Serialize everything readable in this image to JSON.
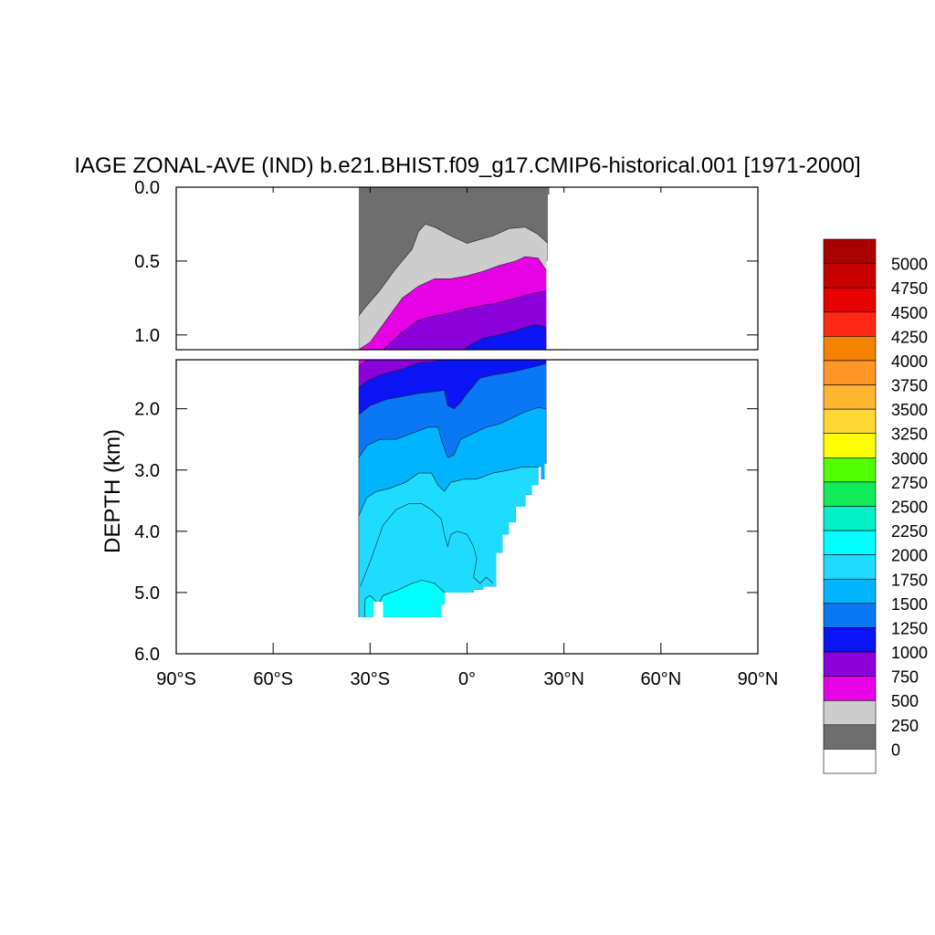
{
  "chart_data": {
    "type": "heatmap",
    "title": "IAGE ZONAL-AVE (IND) b.e21.BHIST.f09_g17.CMIP6-historical.001 [1971-2000]",
    "ylabel": "DEPTH (km)",
    "xlabel": "",
    "xlim": [
      -90,
      90
    ],
    "ylim_upper": [
      0,
      1.1
    ],
    "ylim_lower": [
      1.2,
      6.0
    ],
    "x_ticks": [
      {
        "value": -90,
        "label": "90°S"
      },
      {
        "value": -60,
        "label": "60°S"
      },
      {
        "value": -30,
        "label": "30°S"
      },
      {
        "value": 0,
        "label": "0°"
      },
      {
        "value": 30,
        "label": "30°N"
      },
      {
        "value": 60,
        "label": "60°N"
      },
      {
        "value": 90,
        "label": "90°N"
      }
    ],
    "y_ticks_upper": [
      {
        "value": 0.0,
        "label": "0.0"
      },
      {
        "value": 0.5,
        "label": "0.5"
      },
      {
        "value": 1.0,
        "label": "1.0"
      }
    ],
    "y_ticks_lower": [
      {
        "value": 2.0,
        "label": "2.0"
      },
      {
        "value": 3.0,
        "label": "3.0"
      },
      {
        "value": 4.0,
        "label": "4.0"
      },
      {
        "value": 5.0,
        "label": "5.0"
      },
      {
        "value": 6.0,
        "label": "6.0"
      }
    ],
    "contour_levels": [
      0,
      250,
      500,
      750,
      1000,
      1250,
      1500,
      1750,
      2000,
      2250,
      2500,
      2750,
      3000,
      3250,
      3500,
      3750,
      4000,
      4250,
      4500,
      4750,
      5000
    ],
    "colorbar": {
      "colors": [
        "#ffffff",
        "#6e6e6e",
        "#cdcdcd",
        "#e600e6",
        "#8c00dc",
        "#0a14f5",
        "#0a78f5",
        "#00b4ff",
        "#1edcff",
        "#00ffff",
        "#00f0c8",
        "#14eb5a",
        "#50ff00",
        "#ffff00",
        "#ffd732",
        "#ffb432",
        "#ff9628",
        "#f58200",
        "#ff2814",
        "#e60000",
        "#c80000",
        "#aa0000"
      ],
      "labels": [
        "0",
        "250",
        "500",
        "750",
        "1000",
        "1250",
        "1500",
        "1750",
        "2000",
        "2250",
        "2500",
        "2750",
        "3000",
        "3250",
        "3500",
        "3750",
        "4000",
        "4250",
        "4500",
        "4750",
        "5000"
      ]
    },
    "bands": [
      {
        "color": "#cdcdcd",
        "points": [
          [
            -33.5,
            0.87
          ],
          [
            -31,
            0.8
          ],
          [
            -27,
            0.7
          ],
          [
            -22,
            0.55
          ],
          [
            -17,
            0.42
          ],
          [
            -15,
            0.3
          ],
          [
            -13,
            0.25
          ],
          [
            -10,
            0.27
          ],
          [
            -5,
            0.33
          ],
          [
            0,
            0.38
          ],
          [
            3,
            0.36
          ],
          [
            8,
            0.33
          ],
          [
            13,
            0.28
          ],
          [
            18,
            0.27
          ],
          [
            22,
            0.32
          ],
          [
            25,
            0.38
          ]
        ]
      },
      {
        "color": "#e600e6",
        "points": [
          [
            -33.5,
            1.1
          ],
          [
            -30,
            1.05
          ],
          [
            -25,
            0.9
          ],
          [
            -20,
            0.75
          ],
          [
            -15,
            0.67
          ],
          [
            -10,
            0.62
          ],
          [
            -5,
            0.62
          ],
          [
            0,
            0.6
          ],
          [
            5,
            0.57
          ],
          [
            10,
            0.53
          ],
          [
            15,
            0.5
          ],
          [
            18,
            0.47
          ],
          [
            22,
            0.48
          ],
          [
            25,
            0.58
          ]
        ]
      },
      {
        "color": "#8c00dc",
        "points": [
          [
            -33.5,
            1.3
          ],
          [
            -26,
            1.1
          ],
          [
            -20,
            0.98
          ],
          [
            -15,
            0.9
          ],
          [
            -10,
            0.87
          ],
          [
            -5,
            0.85
          ],
          [
            0,
            0.82
          ],
          [
            5,
            0.8
          ],
          [
            10,
            0.78
          ],
          [
            15,
            0.75
          ],
          [
            20,
            0.72
          ],
          [
            25,
            0.7
          ]
        ]
      },
      {
        "color": "#0a14f5",
        "points": [
          [
            -33.5,
            1.65
          ],
          [
            -31,
            1.55
          ],
          [
            -27,
            1.45
          ],
          [
            -20,
            1.35
          ],
          [
            -15,
            1.25
          ],
          [
            -10,
            1.23
          ],
          [
            -5,
            1.18
          ],
          [
            -2,
            1.12
          ],
          [
            0,
            1.08
          ],
          [
            5,
            1.02
          ],
          [
            10,
            1.0
          ],
          [
            15,
            0.97
          ],
          [
            18,
            0.95
          ],
          [
            21,
            0.93
          ],
          [
            25,
            0.95
          ]
        ]
      },
      {
        "color": "#0a78f5",
        "points": [
          [
            -33.5,
            2.1
          ],
          [
            -30,
            1.95
          ],
          [
            -25,
            1.85
          ],
          [
            -20,
            1.8
          ],
          [
            -15,
            1.75
          ],
          [
            -10,
            1.72
          ],
          [
            -7,
            1.7
          ],
          [
            -6,
            1.95
          ],
          [
            -4,
            2.0
          ],
          [
            -2,
            1.9
          ],
          [
            0,
            1.75
          ],
          [
            4,
            1.5
          ],
          [
            8,
            1.45
          ],
          [
            14,
            1.4
          ],
          [
            18,
            1.35
          ],
          [
            22,
            1.3
          ],
          [
            25,
            1.25
          ]
        ]
      },
      {
        "color": "#00b4ff",
        "points": [
          [
            -33.5,
            2.8
          ],
          [
            -31,
            2.6
          ],
          [
            -27,
            2.5
          ],
          [
            -22,
            2.5
          ],
          [
            -17,
            2.4
          ],
          [
            -12,
            2.3
          ],
          [
            -9,
            2.3
          ],
          [
            -8,
            2.5
          ],
          [
            -6,
            2.8
          ],
          [
            -4,
            2.75
          ],
          [
            -2,
            2.5
          ],
          [
            2,
            2.4
          ],
          [
            6,
            2.3
          ],
          [
            10,
            2.25
          ],
          [
            14,
            2.15
          ],
          [
            18,
            2.05
          ],
          [
            22,
            1.98
          ],
          [
            24.5,
            2.0
          ]
        ]
      },
      {
        "color": "#1edcff",
        "points": [
          [
            -33.5,
            3.75
          ],
          [
            -31,
            3.45
          ],
          [
            -28,
            3.35
          ],
          [
            -24,
            3.3
          ],
          [
            -19,
            3.2
          ],
          [
            -15,
            3.05
          ],
          [
            -11,
            3.05
          ],
          [
            -9,
            3.25
          ],
          [
            -7,
            3.35
          ],
          [
            -5,
            3.2
          ],
          [
            -1,
            3.15
          ],
          [
            3,
            3.15
          ],
          [
            8,
            3.05
          ],
          [
            13,
            3.0
          ],
          [
            17,
            2.95
          ],
          [
            20,
            2.95
          ],
          [
            22,
            2.95
          ]
        ]
      },
      {
        "color": "#00ffff",
        "points": [
          [
            -32,
            6.0
          ],
          [
            -31.5,
            5.1
          ],
          [
            -30,
            5.05
          ],
          [
            -29,
            5.1
          ],
          [
            -27.5,
            5.2
          ],
          [
            -26,
            5.05
          ],
          [
            -21,
            4.95
          ],
          [
            -17,
            4.85
          ],
          [
            -14,
            4.8
          ],
          [
            -10,
            4.85
          ],
          [
            -7,
            5.0
          ],
          [
            -6,
            5.3
          ],
          [
            -5,
            5.45
          ],
          [
            -4,
            6.0
          ]
        ]
      }
    ],
    "inner_contour": [
      [
        -33,
        4.9
      ],
      [
        -30,
        4.5
      ],
      [
        -28,
        4.2
      ],
      [
        -26,
        3.9
      ],
      [
        -22,
        3.65
      ],
      [
        -18,
        3.55
      ],
      [
        -14,
        3.55
      ],
      [
        -11,
        3.65
      ],
      [
        -8,
        3.8
      ],
      [
        -7,
        4.05
      ],
      [
        -6,
        4.25
      ],
      [
        -5,
        4.05
      ],
      [
        -3,
        4.0
      ],
      [
        0,
        4.05
      ],
      [
        2,
        4.25
      ],
      [
        3,
        4.45
      ],
      [
        2,
        4.75
      ],
      [
        4,
        4.85
      ],
      [
        6,
        4.75
      ],
      [
        8,
        4.85
      ]
    ],
    "ocean_boundary": [
      [
        -33.5,
        0
      ],
      [
        25.5,
        0
      ],
      [
        25.5,
        0.05
      ],
      [
        25,
        0.05
      ],
      [
        25,
        0.5
      ],
      [
        24.5,
        0.5
      ],
      [
        24.5,
        2.9
      ],
      [
        24,
        2.9
      ],
      [
        24,
        3.15
      ],
      [
        23,
        3.15
      ],
      [
        23,
        2.95
      ],
      [
        22,
        2.95
      ],
      [
        22,
        3.25
      ],
      [
        20,
        3.25
      ],
      [
        20,
        3.4
      ],
      [
        18,
        3.4
      ],
      [
        18,
        3.6
      ],
      [
        15,
        3.6
      ],
      [
        15,
        3.85
      ],
      [
        13,
        3.85
      ],
      [
        13,
        4.05
      ],
      [
        11,
        4.05
      ],
      [
        11,
        4.35
      ],
      [
        9,
        4.35
      ],
      [
        9,
        4.9
      ],
      [
        5,
        4.9
      ],
      [
        5,
        4.95
      ],
      [
        2,
        4.95
      ],
      [
        2,
        5.0
      ],
      [
        -7,
        5.0
      ],
      [
        -7,
        5.2
      ],
      [
        -8,
        5.2
      ],
      [
        -8,
        5.4
      ],
      [
        -26,
        5.4
      ],
      [
        -26,
        5.15
      ],
      [
        -29,
        5.15
      ],
      [
        -29,
        5.4
      ],
      [
        -33.5,
        5.4
      ]
    ]
  }
}
